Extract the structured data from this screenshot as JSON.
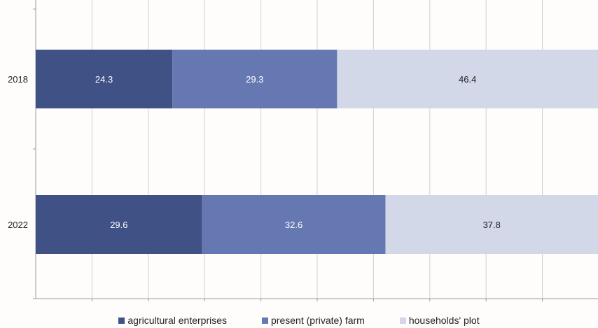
{
  "chart_data": {
    "type": "bar",
    "orientation": "horizontal",
    "stacked": true,
    "categories": [
      "2018",
      "2022"
    ],
    "series": [
      {
        "name": "agricultural enterprises",
        "values": [
          24.3,
          29.6
        ],
        "color": "#3f5185"
      },
      {
        "name": "present (private) farm",
        "values": [
          29.3,
          32.6
        ],
        "color": "#6578b2"
      },
      {
        "name": "households' plot",
        "values": [
          46.4,
          37.8
        ],
        "color": "#d3d8e8"
      }
    ],
    "xlim": [
      0,
      100
    ],
    "grid": true,
    "legend": "bottom",
    "data_label_color": "#ffffff",
    "last_series_label_color": "#222222"
  }
}
